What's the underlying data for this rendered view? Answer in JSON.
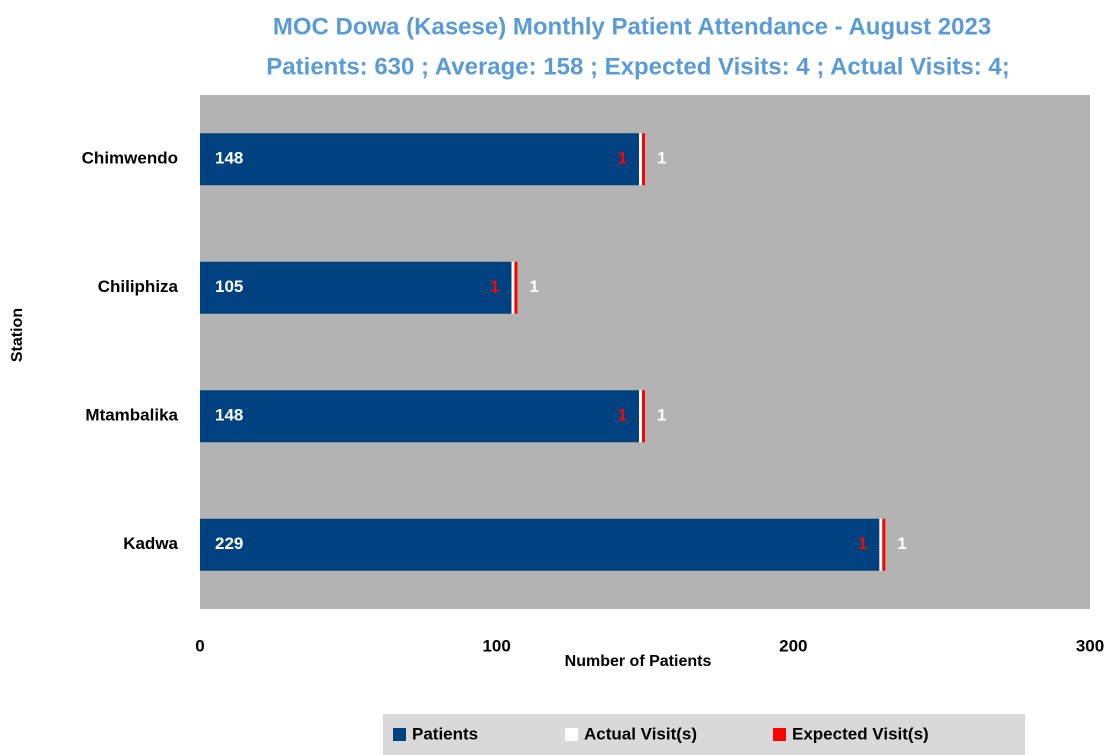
{
  "chart_data": {
    "type": "stacked_barh",
    "title": "MOC Dowa (Kasese) Monthly Patient Attendance - August 2023",
    "subtitle": "Patients: 630 ; Average: 158 ; Expected Visits: 4 ; Actual Visits: 4;",
    "x_label": "Number of Patients",
    "y_label": "Station",
    "categories": [
      "Chimwendo",
      "Chiliphiza",
      "Mtambalika",
      "Kadwa"
    ],
    "series": [
      {
        "name": "Patients",
        "color": "#00427f",
        "values": [
          148,
          105,
          148,
          229
        ]
      },
      {
        "name": "Actual Visit(s)",
        "color": "#ffffff",
        "values": [
          1,
          1,
          1,
          1
        ]
      },
      {
        "name": "Expected Visit(s)",
        "color": "#ff0000",
        "values": [
          1,
          1,
          1,
          1
        ]
      }
    ],
    "xlim": [
      0,
      300
    ],
    "xticks": [
      0,
      100,
      200,
      300
    ],
    "grid": false,
    "legend": "bottom"
  }
}
